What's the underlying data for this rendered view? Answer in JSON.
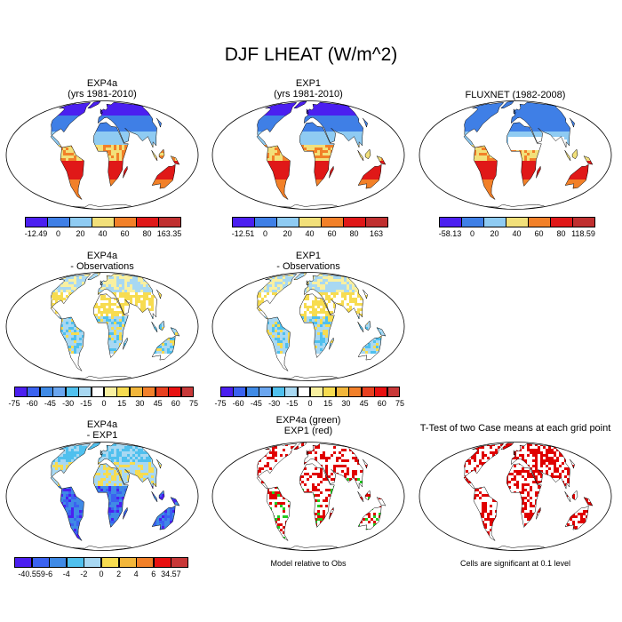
{
  "main_title": "DJF LHEAT (W/m^2)",
  "colors": {
    "abs": [
      "#4b1ff0",
      "#3f7fe6",
      "#8fcbf2",
      "#f2e07a",
      "#f28028",
      "#e01818",
      "#c03030"
    ],
    "diff": [
      "#4b1ff0",
      "#3a62f0",
      "#3f8ae6",
      "#6aa6f0",
      "#4fc0ee",
      "#a8d8f2",
      "#ffffff",
      "#f9f0a0",
      "#f7dc50",
      "#f2b63a",
      "#f2802a",
      "#e8401f",
      "#e81010",
      "#c83838"
    ],
    "expdiff": [
      "#4b1ff0",
      "#3a62f0",
      "#3f8ae6",
      "#4fc0ee",
      "#a8d8f2",
      "#f7dc50",
      "#f2b63a",
      "#f28028",
      "#e81010",
      "#c83838"
    ],
    "land_fill": "#d8e8f2",
    "sig_red": "#e00000",
    "sig_green": "#22cc22"
  },
  "panels": [
    {
      "title_lines": [
        "EXP4a",
        "(yrs 1981-2010)"
      ],
      "map_style": "abs_exp4a"
    },
    {
      "title_lines": [
        "EXP1",
        "(yrs 1981-2010)"
      ],
      "map_style": "abs_exp1"
    },
    {
      "title_lines": [
        "FLUXNET (1982-2008)"
      ],
      "map_style": "abs_fluxnet"
    },
    {
      "title_lines": [
        "EXP4a",
        "- Observations"
      ],
      "map_style": "diff"
    },
    {
      "title_lines": [
        "EXP1",
        "- Observations"
      ],
      "map_style": "diff"
    },
    {
      "title_lines": [
        "EXP4a",
        "- EXP1"
      ],
      "map_style": "expdiff"
    },
    {
      "title_lines": [
        "EXP4a (green)",
        "EXP1 (red)"
      ],
      "map_style": "sig_both"
    },
    {
      "title_lines": [
        "T-Test of two Case means at each grid point"
      ],
      "map_style": "sig_red"
    }
  ],
  "colorbars": [
    {
      "name": "exp4a",
      "labels": [
        "-12.49",
        "0",
        "20",
        "40",
        "60",
        "80",
        "163.35"
      ]
    },
    {
      "name": "exp1",
      "labels": [
        "-12.51",
        "0",
        "20",
        "40",
        "60",
        "80",
        "163"
      ]
    },
    {
      "name": "fluxnet",
      "labels": [
        "-58.13",
        "0",
        "20",
        "40",
        "60",
        "80",
        "118.59"
      ]
    },
    {
      "name": "diff1",
      "labels": [
        "-75",
        "-60",
        "-45",
        "-30",
        "-15",
        "0",
        "15",
        "30",
        "45",
        "60",
        "75"
      ]
    },
    {
      "name": "diff2",
      "labels": [
        "-75",
        "-60",
        "-45",
        "-30",
        "-15",
        "0",
        "15",
        "30",
        "45",
        "60",
        "75"
      ]
    },
    {
      "name": "expdiff",
      "labels": [
        "-40.559",
        "-6",
        "-4",
        "-2",
        "0",
        "2",
        "4",
        "6",
        "34.57"
      ]
    }
  ],
  "notes": {
    "model_relative": "Model relative to Obs",
    "significance": "Cells are significant at 0.1 level"
  },
  "chart_data": {
    "type": "heatmap",
    "title": "DJF LHEAT (W/m^2)",
    "variable": "LHEAT",
    "season": "DJF",
    "units": "W/m^2",
    "maps": [
      {
        "title": "EXP4a (yrs 1981-2010)",
        "range": [
          -12.49,
          163.35
        ],
        "levels": [
          0,
          20,
          40,
          60,
          80
        ]
      },
      {
        "title": "EXP1 (yrs 1981-2010)",
        "range": [
          -12.51,
          163
        ],
        "levels": [
          0,
          20,
          40,
          60,
          80
        ]
      },
      {
        "title": "FLUXNET (1982-2008)",
        "range": [
          -58.13,
          118.59
        ],
        "levels": [
          0,
          20,
          40,
          60,
          80
        ]
      },
      {
        "title": "EXP4a - Observations",
        "levels": [
          -75,
          -60,
          -45,
          -30,
          -15,
          0,
          15,
          30,
          45,
          60,
          75
        ]
      },
      {
        "title": "EXP1 - Observations",
        "levels": [
          -75,
          -60,
          -45,
          -30,
          -15,
          0,
          15,
          30,
          45,
          60,
          75
        ]
      },
      {
        "title": "EXP4a - EXP1",
        "range": [
          -40.559,
          34.57
        ],
        "levels": [
          -6,
          -4,
          -2,
          0,
          2,
          4,
          6
        ]
      },
      {
        "title": "EXP4a (green) EXP1 (red)",
        "note": "Model relative to Obs"
      },
      {
        "title": "T-Test of two Case means at each grid point",
        "note": "Cells are significant at 0.1 level"
      }
    ]
  }
}
